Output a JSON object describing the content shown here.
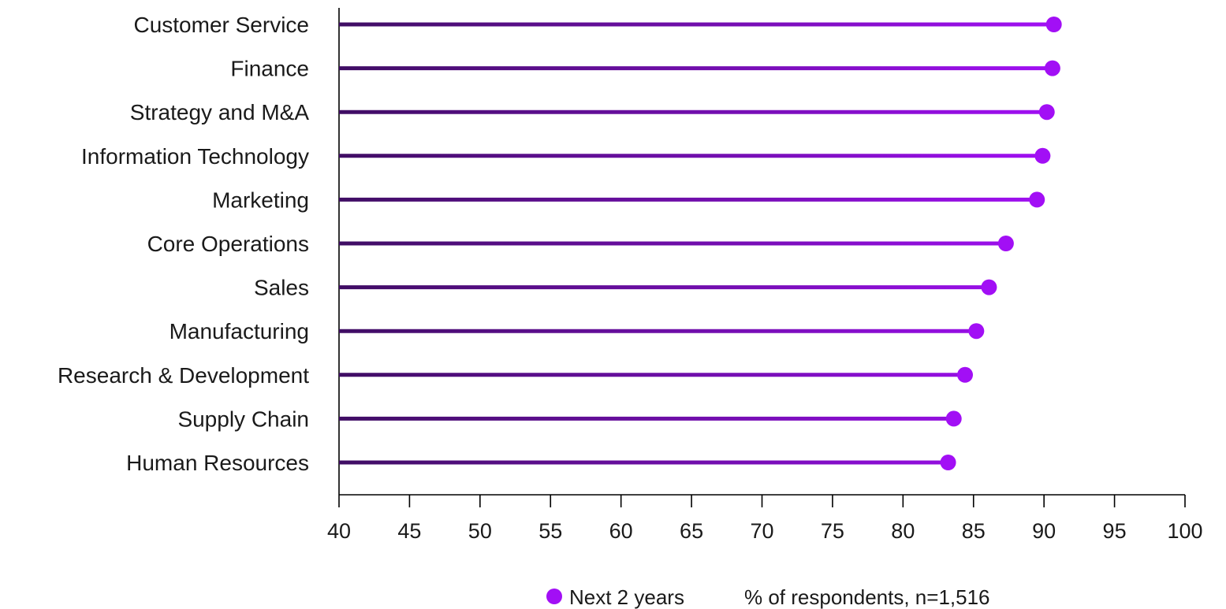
{
  "chart_data": {
    "type": "lollipop",
    "categories": [
      "Customer Service",
      "Finance",
      "Strategy and M&A",
      "Information Technology",
      "Marketing",
      "Core Operations",
      "Sales",
      "Manufacturing",
      "Research & Development",
      "Supply Chain",
      "Human Resources"
    ],
    "series": [
      {
        "name": "Next 2 years",
        "values": [
          90.7,
          90.6,
          90.2,
          89.9,
          89.5,
          87.3,
          86.1,
          85.2,
          84.4,
          83.6,
          83.2
        ]
      }
    ],
    "xlim": [
      40,
      100
    ],
    "xticks": [
      40,
      45,
      50,
      55,
      60,
      65,
      70,
      75,
      80,
      85,
      90,
      95,
      100
    ],
    "legend_position": "bottom",
    "note": "% of respondents, n=1,516",
    "grid": false,
    "colors": {
      "stem_start": "#3f0d63",
      "stem_end": "#a20ff5",
      "marker": "#a20ff5",
      "axis": "#000000",
      "text": "#1a1a1a"
    }
  }
}
